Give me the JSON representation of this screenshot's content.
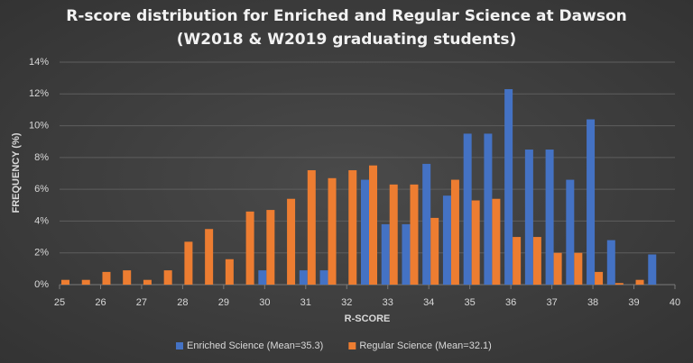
{
  "chart_data": {
    "type": "bar",
    "title": [
      "R-score distribution for Enriched and Regular Science at Dawson",
      "(W2018 & W2019 graduating students)"
    ],
    "x_label": "R-SCORE",
    "y_label": "FREQUENCY (%)",
    "x": [
      25,
      25.5,
      26,
      26.5,
      27,
      27.5,
      28,
      28.5,
      29,
      29.5,
      30,
      30.5,
      31,
      31.5,
      32,
      32.5,
      33,
      33.5,
      34,
      34.5,
      35,
      35.5,
      36,
      36.5,
      37,
      37.5,
      38,
      38.5,
      39,
      39.5
    ],
    "series": [
      {
        "name": "Enriched Science (Mean=35.3)",
        "color": "#4472c4",
        "values": [
          0,
          0,
          0,
          0,
          0,
          0,
          0,
          0,
          0,
          0,
          0.9,
          0,
          0.9,
          0.9,
          0,
          6.6,
          3.8,
          3.8,
          7.6,
          5.6,
          9.5,
          9.5,
          12.3,
          8.5,
          8.5,
          6.6,
          10.4,
          2.8,
          0,
          1.9
        ]
      },
      {
        "name": "Regular Science (Mean=32.1)",
        "color": "#ed7d31",
        "values": [
          0.3,
          0.3,
          0.8,
          0.9,
          0.3,
          0.9,
          2.7,
          3.5,
          1.6,
          4.6,
          4.7,
          5.4,
          7.2,
          6.7,
          7.2,
          7.5,
          6.3,
          6.3,
          4.2,
          6.6,
          5.3,
          5.4,
          3.0,
          3.0,
          2.0,
          2.0,
          0.8,
          0.1,
          0.3,
          0
        ]
      }
    ],
    "xlim": [
      25,
      40
    ],
    "xticks": [
      25,
      26,
      27,
      28,
      29,
      30,
      31,
      32,
      33,
      34,
      35,
      36,
      37,
      38,
      39,
      40
    ],
    "ylim": [
      0,
      14
    ],
    "yticks": [
      {
        "value": 0,
        "label": "0%"
      },
      {
        "value": 2,
        "label": "2%"
      },
      {
        "value": 4,
        "label": "4%"
      },
      {
        "value": 6,
        "label": "6%"
      },
      {
        "value": 8,
        "label": "8%"
      },
      {
        "value": 10,
        "label": "10%"
      },
      {
        "value": 12,
        "label": "12%"
      },
      {
        "value": 14,
        "label": "14%"
      }
    ],
    "grid": true,
    "legend": "bottom"
  }
}
